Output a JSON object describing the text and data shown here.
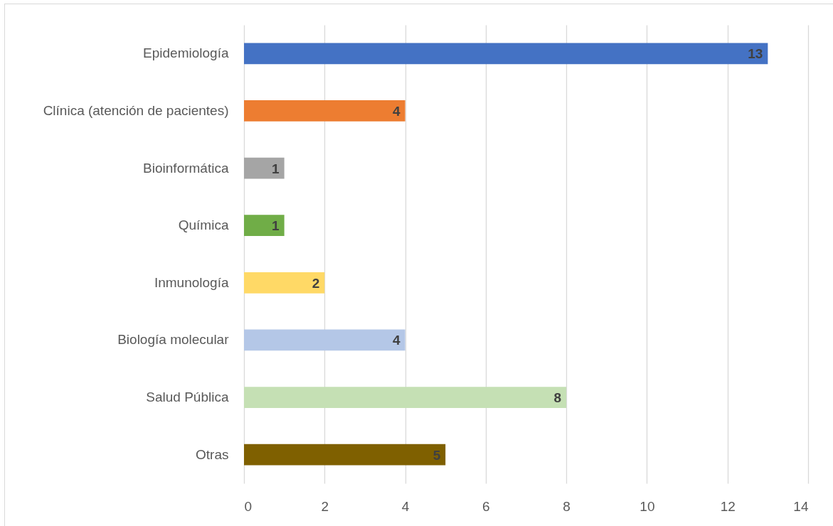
{
  "chart_data": {
    "type": "bar",
    "orientation": "horizontal",
    "categories": [
      "Epidemiología",
      "Clínica (atención de pacientes)",
      "Bioinformática",
      "Química",
      "Inmunología",
      "Biología molecular",
      "Salud Pública",
      "Otras"
    ],
    "values": [
      13,
      4,
      1,
      1,
      2,
      4,
      8,
      5
    ],
    "colors": [
      "#4472c4",
      "#ed7d31",
      "#a5a5a5",
      "#70ad47",
      "#ffd966",
      "#b4c7e7",
      "#c5e0b4",
      "#7f6000"
    ],
    "xlim": [
      0,
      14
    ],
    "xticks": [
      0,
      2,
      4,
      6,
      8,
      10,
      12,
      14
    ],
    "grid": "x",
    "data_labels": true
  }
}
